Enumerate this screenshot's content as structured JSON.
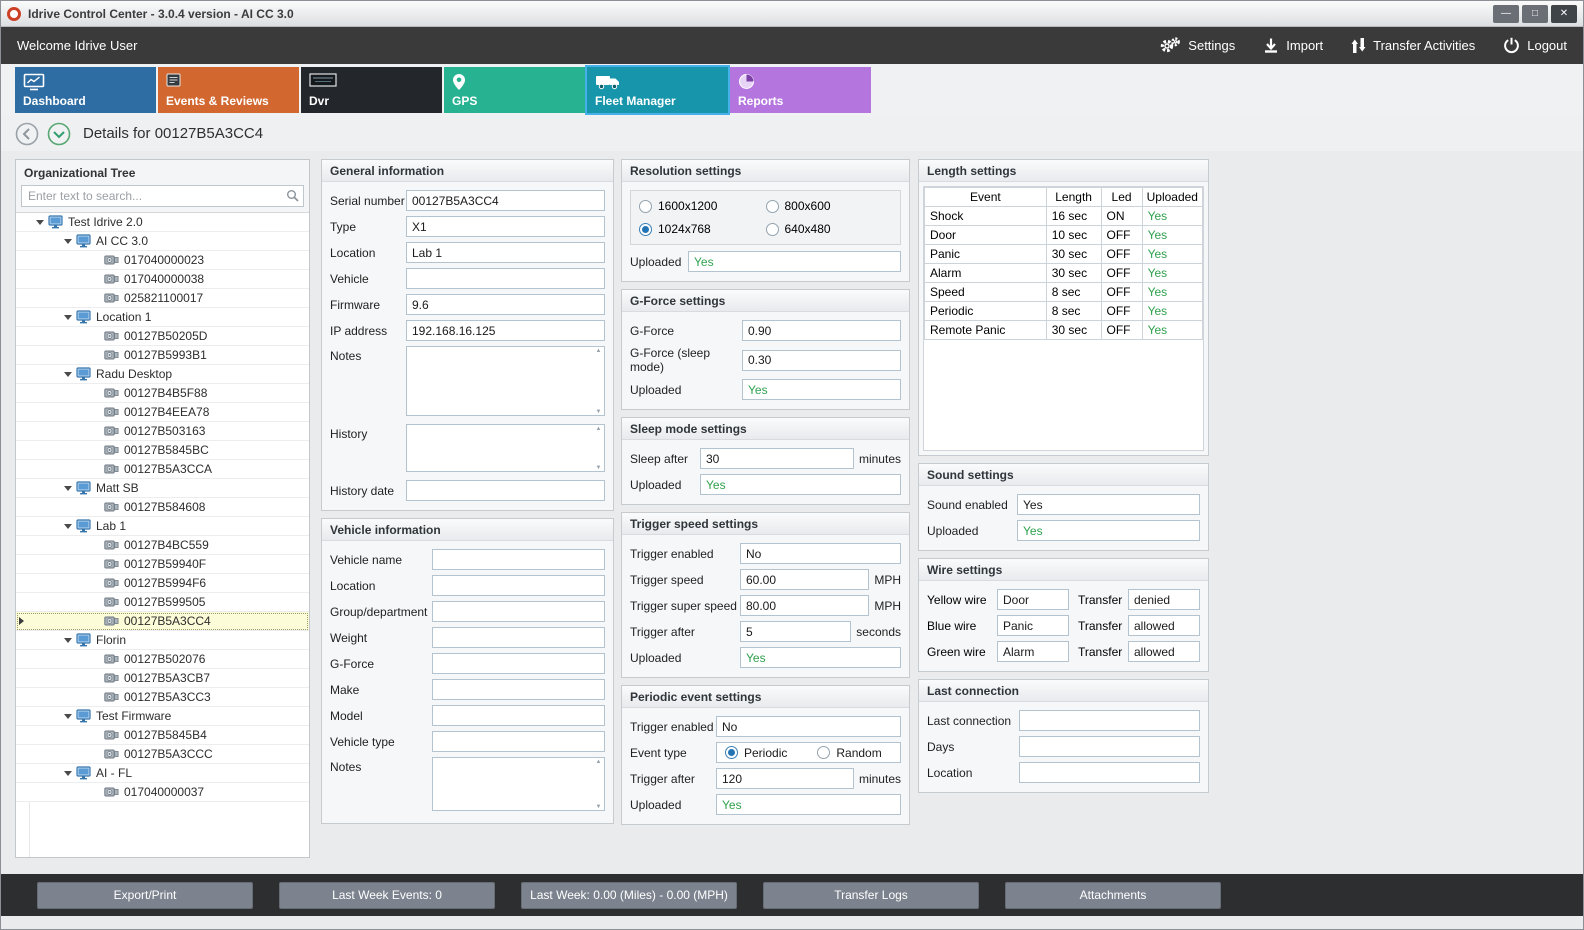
{
  "window": {
    "title": "Idrive Control Center - 3.0.4 version - AI CC 3.0",
    "controls": [
      "minimize",
      "maximize",
      "close"
    ]
  },
  "topbar": {
    "welcome": "Welcome Idrive User",
    "actions": [
      {
        "name": "settings",
        "label": "Settings",
        "icon": "gears-icon"
      },
      {
        "name": "import",
        "label": "Import",
        "icon": "import-icon"
      },
      {
        "name": "transfer-activities",
        "label": "Transfer Activities",
        "icon": "transfer-icon"
      },
      {
        "name": "logout",
        "label": "Logout",
        "icon": "power-icon"
      }
    ]
  },
  "tabs": [
    {
      "name": "dashboard",
      "label": "Dashboard",
      "color": "#2e6da4",
      "icon": "dashboard-icon",
      "selected": false
    },
    {
      "name": "events-reviews",
      "label": "Events & Reviews",
      "color": "#d2682f",
      "icon": "events-icon",
      "selected": false
    },
    {
      "name": "dvr",
      "label": "Dvr",
      "color": "#23272b",
      "icon": "dvr-icon",
      "selected": false
    },
    {
      "name": "gps",
      "label": "GPS",
      "color": "#27b391",
      "icon": "gps-icon",
      "selected": false
    },
    {
      "name": "fleet-manager",
      "label": "Fleet Manager",
      "color": "#1795ab",
      "icon": "fleet-icon",
      "selected": true
    },
    {
      "name": "reports",
      "label": "Reports",
      "color": "#b476de",
      "icon": "reports-icon",
      "selected": false
    }
  ],
  "page": {
    "title": "Details for 00127B5A3CC4"
  },
  "tree": {
    "title": "Organizational Tree",
    "search_placeholder": "Enter text to search...",
    "nodes": [
      {
        "level": 0,
        "type": "group",
        "label": "Test Idrive 2.0",
        "selected": false
      },
      {
        "level": 1,
        "type": "group",
        "label": "AI CC 3.0",
        "selected": false
      },
      {
        "level": 2,
        "type": "device",
        "label": "017040000023",
        "selected": false
      },
      {
        "level": 2,
        "type": "device",
        "label": "017040000038",
        "selected": false
      },
      {
        "level": 2,
        "type": "device",
        "label": "025821100017",
        "selected": false
      },
      {
        "level": 1,
        "type": "group",
        "label": "Location 1",
        "selected": false
      },
      {
        "level": 2,
        "type": "device",
        "label": "00127B50205D",
        "selected": false
      },
      {
        "level": 2,
        "type": "device",
        "label": "00127B5993B1",
        "selected": false
      },
      {
        "level": 1,
        "type": "group",
        "label": "Radu Desktop",
        "selected": false
      },
      {
        "level": 2,
        "type": "device",
        "label": "00127B4B5F88",
        "selected": false
      },
      {
        "level": 2,
        "type": "device",
        "label": "00127B4EEA78",
        "selected": false
      },
      {
        "level": 2,
        "type": "device",
        "label": "00127B503163",
        "selected": false
      },
      {
        "level": 2,
        "type": "device",
        "label": "00127B5845BC",
        "selected": false
      },
      {
        "level": 2,
        "type": "device",
        "label": "00127B5A3CCA",
        "selected": false
      },
      {
        "level": 1,
        "type": "group",
        "label": "Matt SB",
        "selected": false
      },
      {
        "level": 2,
        "type": "device",
        "label": "00127B584608",
        "selected": false
      },
      {
        "level": 1,
        "type": "group",
        "label": "Lab 1",
        "selected": false
      },
      {
        "level": 2,
        "type": "device",
        "label": "00127B4BC559",
        "selected": false
      },
      {
        "level": 2,
        "type": "device",
        "label": "00127B59940F",
        "selected": false
      },
      {
        "level": 2,
        "type": "device",
        "label": "00127B5994F6",
        "selected": false
      },
      {
        "level": 2,
        "type": "device",
        "label": "00127B599505",
        "selected": false
      },
      {
        "level": 2,
        "type": "device",
        "label": "00127B5A3CC4",
        "selected": true
      },
      {
        "level": 1,
        "type": "group",
        "label": "Florin",
        "selected": false
      },
      {
        "level": 2,
        "type": "device",
        "label": "00127B502076",
        "selected": false
      },
      {
        "level": 2,
        "type": "device",
        "label": "00127B5A3CB7",
        "selected": false
      },
      {
        "level": 2,
        "type": "device",
        "label": "00127B5A3CC3",
        "selected": false
      },
      {
        "level": 1,
        "type": "group",
        "label": "Test Firmware",
        "selected": false
      },
      {
        "level": 2,
        "type": "device",
        "label": "00127B5845B4",
        "selected": false
      },
      {
        "level": 2,
        "type": "device",
        "label": "00127B5A3CCC",
        "selected": false
      },
      {
        "level": 1,
        "type": "group",
        "label": "AI - FL",
        "selected": false
      },
      {
        "level": 2,
        "type": "device",
        "label": "017040000037",
        "selected": false
      }
    ]
  },
  "general_info": {
    "title": "General information",
    "fields": [
      {
        "label": "Serial number",
        "value": "00127B5A3CC4",
        "type": "input"
      },
      {
        "label": "Type",
        "value": "X1",
        "type": "input"
      },
      {
        "label": "Location",
        "value": "Lab 1",
        "type": "input"
      },
      {
        "label": "Vehicle",
        "value": "",
        "type": "input"
      },
      {
        "label": "Firmware",
        "value": "9.6",
        "type": "input"
      },
      {
        "label": "IP address",
        "value": "192.168.16.125",
        "type": "input"
      },
      {
        "label": "Notes",
        "value": "",
        "type": "textarea"
      },
      {
        "label": "History",
        "value": "",
        "type": "textarea"
      },
      {
        "label": "History date",
        "value": "",
        "type": "input"
      }
    ]
  },
  "vehicle_info": {
    "title": "Vehicle information",
    "fields": [
      {
        "label": "Vehicle name",
        "value": "",
        "type": "input"
      },
      {
        "label": "Location",
        "value": "",
        "type": "input"
      },
      {
        "label": "Group/department",
        "value": "",
        "type": "input"
      },
      {
        "label": "Weight",
        "value": "",
        "type": "input"
      },
      {
        "label": "G-Force",
        "value": "",
        "type": "input"
      },
      {
        "label": "Make",
        "value": "",
        "type": "input"
      },
      {
        "label": "Model",
        "value": "",
        "type": "input"
      },
      {
        "label": "Vehicle type",
        "value": "",
        "type": "input"
      },
      {
        "label": "Notes",
        "value": "",
        "type": "textarea"
      }
    ]
  },
  "resolution": {
    "title": "Resolution settings",
    "options": [
      {
        "label": "1600x1200",
        "selected": false
      },
      {
        "label": "800x600",
        "selected": false
      },
      {
        "label": "1024x768",
        "selected": true
      },
      {
        "label": "640x480",
        "selected": false
      }
    ],
    "uploaded_label": "Uploaded",
    "uploaded_value": "Yes"
  },
  "gforce": {
    "title": "G-Force settings",
    "fields": [
      {
        "label": "G-Force",
        "value": "0.90",
        "type": "input"
      },
      {
        "label": "G-Force (sleep mode)",
        "value": "0.30",
        "type": "input"
      },
      {
        "label": "Uploaded",
        "value": "Yes",
        "type": "input",
        "green": true
      }
    ]
  },
  "sleep": {
    "title": "Sleep mode settings",
    "fields": [
      {
        "label": "Sleep after",
        "value": "30",
        "type": "input",
        "unit": "minutes"
      },
      {
        "label": "Uploaded",
        "value": "Yes",
        "type": "input",
        "green": true
      }
    ]
  },
  "trigger_speed": {
    "title": "Trigger speed settings",
    "fields": [
      {
        "label": "Trigger enabled",
        "value": "No",
        "type": "input"
      },
      {
        "label": "Trigger speed",
        "value": "60.00",
        "type": "input",
        "unit": "MPH"
      },
      {
        "label": "Trigger super speed",
        "value": "80.00",
        "type": "input",
        "unit": "MPH"
      },
      {
        "label": "Trigger after",
        "value": "5",
        "type": "input",
        "unit": "seconds"
      },
      {
        "label": "Uploaded",
        "value": "Yes",
        "type": "input",
        "green": true
      }
    ]
  },
  "periodic": {
    "title": "Periodic event settings",
    "enabled_label": "Trigger enabled",
    "enabled_value": "No",
    "event_type_label": "Event type",
    "event_type_options": [
      {
        "label": "Periodic",
        "selected": true
      },
      {
        "label": "Random",
        "selected": false
      }
    ],
    "after_label": "Trigger after",
    "after_value": "120",
    "after_unit": "minutes",
    "uploaded_label": "Uploaded",
    "uploaded_value": "Yes"
  },
  "length_settings": {
    "title": "Length settings",
    "headers": [
      "Event",
      "Length",
      "Led",
      "Uploaded"
    ],
    "rows": [
      [
        "Shock",
        "16 sec",
        "ON",
        "Yes"
      ],
      [
        "Door",
        "10 sec",
        "OFF",
        "Yes"
      ],
      [
        "Panic",
        "30 sec",
        "OFF",
        "Yes"
      ],
      [
        "Alarm",
        "30 sec",
        "OFF",
        "Yes"
      ],
      [
        "Speed",
        "8 sec",
        "OFF",
        "Yes"
      ],
      [
        "Periodic",
        "8 sec",
        "OFF",
        "Yes"
      ],
      [
        "Remote Panic",
        "30 sec",
        "OFF",
        "Yes"
      ]
    ]
  },
  "sound": {
    "title": "Sound settings",
    "fields": [
      {
        "label": "Sound enabled",
        "value": "Yes",
        "type": "input"
      },
      {
        "label": "Uploaded",
        "value": "Yes",
        "type": "input",
        "green": true
      }
    ]
  },
  "wire": {
    "title": "Wire settings",
    "rows": [
      {
        "label": "Yellow wire",
        "value": "Door",
        "transfer_label": "Transfer",
        "transfer_value": "denied"
      },
      {
        "label": "Blue wire",
        "value": "Panic",
        "transfer_label": "Transfer",
        "transfer_value": "allowed"
      },
      {
        "label": "Green wire",
        "value": "Alarm",
        "transfer_label": "Transfer",
        "transfer_value": "allowed"
      }
    ]
  },
  "last_connection": {
    "title": "Last connection",
    "fields": [
      {
        "label": "Last connection",
        "value": "",
        "type": "input"
      },
      {
        "label": "Days",
        "value": "",
        "type": "input"
      },
      {
        "label": "Location",
        "value": "",
        "type": "input"
      }
    ]
  },
  "bottom_bar": {
    "buttons": [
      "Export/Print",
      "Last Week Events: 0",
      "Last Week: 0.00 (Miles) - 0.00 (MPH)",
      "Transfer Logs",
      "Attachments"
    ]
  },
  "colors": {
    "green": "#2fa14e",
    "selected_tab_border": "#45b1e8",
    "topbar_bg": "#3a3a3a"
  }
}
